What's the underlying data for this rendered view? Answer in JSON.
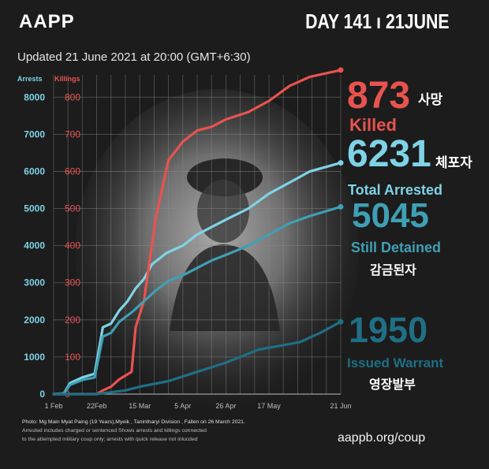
{
  "header": {
    "logo": "AAPP",
    "day": "DAY 141 ı 21JUNE",
    "updated": "Updated 21 June 2021 at 20:00 (GMT+6:30)"
  },
  "colors": {
    "background": "#1c1c1c",
    "arrests": "#7fd3e6",
    "killings": "#e8534f",
    "still_detained": "#3f9fb4",
    "warrant": "#1f6f85"
  },
  "stats": {
    "killed_value": "873",
    "killed_label": "Killed",
    "killed_ko": "사망",
    "arrested_value": "6231",
    "arrested_label": "Total Arrested",
    "arrested_ko": "체포자",
    "detained_value": "5045",
    "detained_label": "Still Detained",
    "detained_ko": "감금된자",
    "warrant_value": "1950",
    "warrant_label": "Issued Warrant",
    "warrant_ko": "영장발부"
  },
  "footer": {
    "photo_credit": "Photo: Mg Main Myat Paing (19 Years),Myeik , Tanintharyi Division , Fallen on 26 March 2021.",
    "note_line1": "Arrested includes charged or sentenced Shows arrests and killings connected",
    "note_line2": "to the attempted military coup only; arrests with quick release not inlucded",
    "website": "aappb.org/coup"
  },
  "chart_data": {
    "type": "line",
    "left_axis_label": "Arrests",
    "right_axis_label": "Killings",
    "left_ticks": [
      "0",
      "1000",
      "2000",
      "3000",
      "4000",
      "5000",
      "6000",
      "7000",
      "8000"
    ],
    "right_ticks": [
      "0",
      "100",
      "200",
      "300",
      "400",
      "500",
      "600",
      "700",
      "800"
    ],
    "x_ticks": [
      "1 Feb",
      "22Feb",
      "15 Mar",
      "5 Apr",
      "26 Apr",
      "17 May",
      "21 Jun"
    ],
    "x_tick_days": [
      0,
      21,
      42,
      63,
      84,
      105,
      140
    ],
    "ylim_left": [
      0,
      8600
    ],
    "ylim_right": [
      0,
      860
    ],
    "xlim_days": [
      0,
      140
    ],
    "series": [
      {
        "axis": "left",
        "color": "#7fd3e6",
        "points": [
          [
            0,
            0
          ],
          [
            5,
            20
          ],
          [
            8,
            300
          ],
          [
            14,
            450
          ],
          [
            20,
            550
          ],
          [
            24,
            1800
          ],
          [
            28,
            1900
          ],
          [
            32,
            2250
          ],
          [
            36,
            2500
          ],
          [
            40,
            2850
          ],
          [
            44,
            3100
          ],
          [
            48,
            3500
          ],
          [
            55,
            3800
          ],
          [
            63,
            4000
          ],
          [
            70,
            4300
          ],
          [
            77,
            4500
          ],
          [
            84,
            4700
          ],
          [
            95,
            5000
          ],
          [
            105,
            5400
          ],
          [
            115,
            5700
          ],
          [
            125,
            6000
          ],
          [
            140,
            6231
          ]
        ]
      },
      {
        "axis": "right",
        "color": "#e8534f",
        "points": [
          [
            0,
            0
          ],
          [
            21,
            0
          ],
          [
            24,
            10
          ],
          [
            28,
            20
          ],
          [
            32,
            40
          ],
          [
            38,
            60
          ],
          [
            40,
            180
          ],
          [
            44,
            250
          ],
          [
            50,
            480
          ],
          [
            56,
            630
          ],
          [
            63,
            680
          ],
          [
            70,
            710
          ],
          [
            77,
            720
          ],
          [
            84,
            740
          ],
          [
            95,
            760
          ],
          [
            105,
            790
          ],
          [
            115,
            830
          ],
          [
            125,
            855
          ],
          [
            140,
            873
          ]
        ]
      },
      {
        "axis": "left",
        "color": "#3f9fb4",
        "points": [
          [
            0,
            0
          ],
          [
            5,
            10
          ],
          [
            8,
            250
          ],
          [
            14,
            380
          ],
          [
            20,
            450
          ],
          [
            24,
            1550
          ],
          [
            28,
            1650
          ],
          [
            32,
            1950
          ],
          [
            38,
            2200
          ],
          [
            44,
            2500
          ],
          [
            50,
            2800
          ],
          [
            56,
            3050
          ],
          [
            63,
            3200
          ],
          [
            70,
            3400
          ],
          [
            77,
            3600
          ],
          [
            84,
            3750
          ],
          [
            95,
            4000
          ],
          [
            105,
            4300
          ],
          [
            115,
            4600
          ],
          [
            125,
            4800
          ],
          [
            140,
            5045
          ]
        ]
      },
      {
        "axis": "left",
        "color": "#1f6f85",
        "points": [
          [
            0,
            0
          ],
          [
            21,
            0
          ],
          [
            28,
            50
          ],
          [
            35,
            100
          ],
          [
            42,
            200
          ],
          [
            56,
            350
          ],
          [
            70,
            600
          ],
          [
            84,
            850
          ],
          [
            100,
            1200
          ],
          [
            110,
            1300
          ],
          [
            120,
            1400
          ],
          [
            130,
            1650
          ],
          [
            140,
            1950
          ]
        ]
      }
    ]
  }
}
